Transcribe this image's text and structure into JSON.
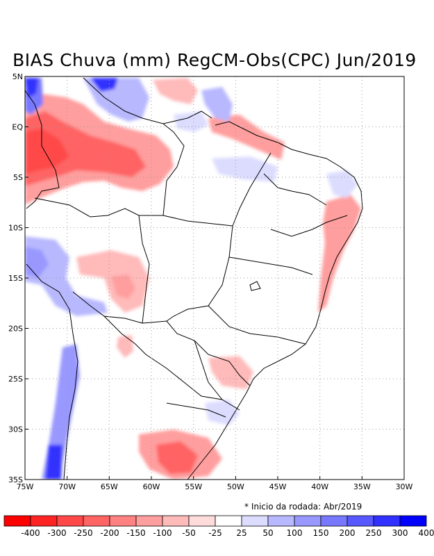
{
  "title": "BIAS Chuva (mm) RegCM-Obs(CPC) Jun/2019",
  "x_axis_labels": [
    "75W",
    "70W",
    "65W",
    "60W",
    "55W",
    "50W",
    "45W",
    "40W",
    "35W",
    "30W"
  ],
  "y_axis_labels": [
    "5N",
    "EQ",
    "5S",
    "10S",
    "15S",
    "20S",
    "25S",
    "30S",
    "35S"
  ],
  "note": "* Inicio da rodada: Abr/2019",
  "colorbar": {
    "labels": [
      "-400",
      "-300",
      "-250",
      "-200",
      "-150",
      "-100",
      "-50",
      "-25",
      "25",
      "50",
      "100",
      "150",
      "200",
      "250",
      "300",
      "400"
    ],
    "colors": [
      "#ff0000",
      "#ff2424",
      "#ff4848",
      "#ff6464",
      "#ff8282",
      "#ff9e9e",
      "#ffbaba",
      "#ffdcdc",
      "#ffffff",
      "#dcdcff",
      "#b8b8ff",
      "#9898ff",
      "#7878ff",
      "#5858ff",
      "#3030ff",
      "#0000ff"
    ]
  }
}
